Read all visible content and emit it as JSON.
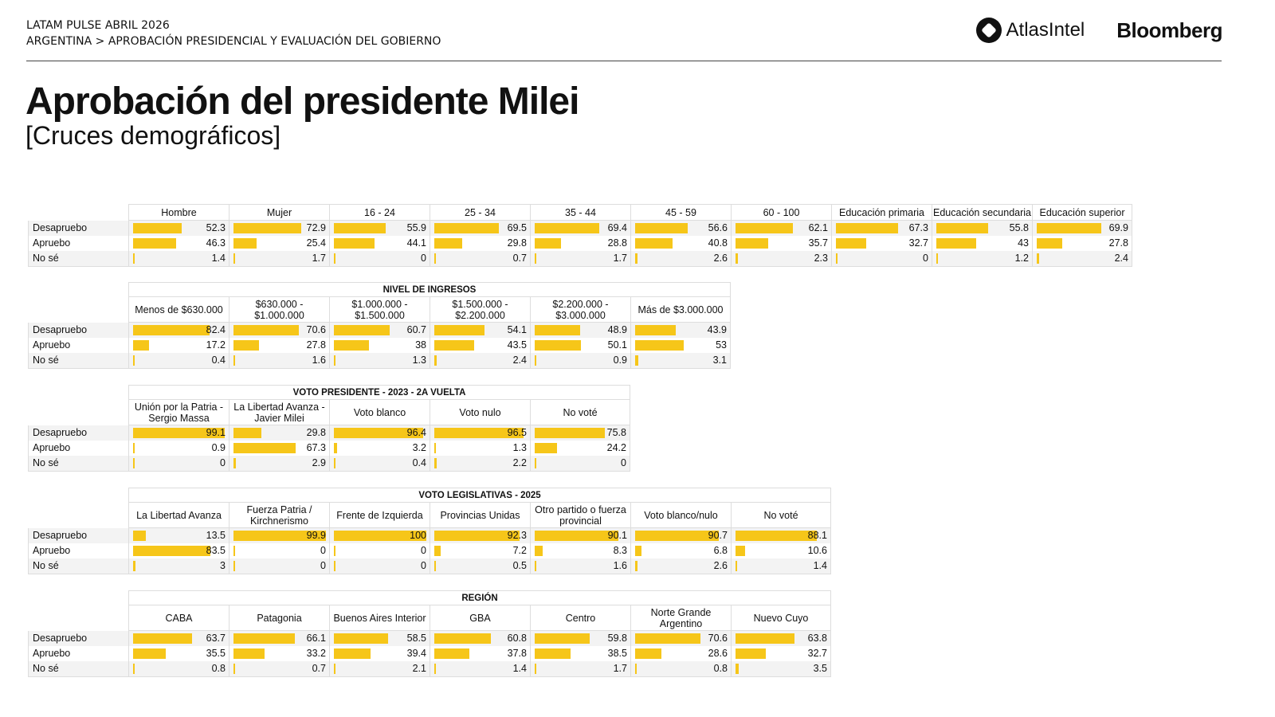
{
  "header": {
    "line1": "LATAM PULSE ABRIL 2026",
    "line2": "ARGENTINA > APROBACIÓN PRESIDENCIAL Y EVALUACIÓN DEL GOBIERNO"
  },
  "logos": {
    "atlas": "AtlasIntel",
    "bloomberg": "Bloomberg"
  },
  "title": "Aprobación del presidente Milei",
  "subtitle": "[Cruces demográficos]",
  "bar_color": "#f6c619",
  "row_labels": [
    "Desapruebo",
    "Apruebo",
    "No sé"
  ],
  "tables": [
    {
      "title": "",
      "columns": [
        "Hombre",
        "Mujer",
        "16 - 24",
        "25 - 34",
        "35 - 44",
        "45 - 59",
        "60 - 100",
        "Educación primaria",
        "Educación secundaria",
        "Educación superior"
      ],
      "values": [
        [
          52.3,
          72.9,
          55.9,
          69.5,
          69.4,
          56.6,
          62.1,
          67.3,
          55.8,
          69.9
        ],
        [
          46.3,
          25.4,
          44.1,
          29.8,
          28.8,
          40.8,
          35.7,
          32.7,
          43,
          27.8
        ],
        [
          1.4,
          1.7,
          0,
          0.7,
          1.7,
          2.6,
          2.3,
          0,
          1.2,
          2.4
        ]
      ]
    },
    {
      "title": "NIVEL DE INGRESOS",
      "columns": [
        "Menos de $630.000",
        "$630.000 - $1.000.000",
        "$1.000.000 - $1.500.000",
        "$1.500.000 - $2.200.000",
        "$2.200.000 - $3.000.000",
        "Más de $3.000.000"
      ],
      "values": [
        [
          82.4,
          70.6,
          60.7,
          54.1,
          48.9,
          43.9
        ],
        [
          17.2,
          27.8,
          38,
          43.5,
          50.1,
          53
        ],
        [
          0.4,
          1.6,
          1.3,
          2.4,
          0.9,
          3.1
        ]
      ]
    },
    {
      "title": "VOTO PRESIDENTE - 2023 - 2A VUELTA",
      "columns": [
        "Unión por la Patria - Sergio Massa",
        "La Libertad Avanza - Javier Milei",
        "Voto blanco",
        "Voto nulo",
        "No voté"
      ],
      "values": [
        [
          99.1,
          29.8,
          96.4,
          96.5,
          75.8
        ],
        [
          0.9,
          67.3,
          3.2,
          1.3,
          24.2
        ],
        [
          0,
          2.9,
          0.4,
          2.2,
          0
        ]
      ]
    },
    {
      "title": "VOTO LEGISLATIVAS - 2025",
      "columns": [
        "La Libertad Avanza",
        "Fuerza Patria / Kirchnerismo",
        "Frente de Izquierda",
        "Provincias Unidas",
        "Otro partido o fuerza provincial",
        "Voto blanco/nulo",
        "No voté"
      ],
      "values": [
        [
          13.5,
          99.9,
          100,
          92.3,
          90.1,
          90.7,
          88.1
        ],
        [
          83.5,
          0,
          0,
          7.2,
          8.3,
          6.8,
          10.6
        ],
        [
          3,
          0,
          0,
          0.5,
          1.6,
          2.6,
          1.4
        ]
      ]
    },
    {
      "title": "REGIÓN",
      "columns": [
        "CABA",
        "Patagonia",
        "Buenos Aires Interior",
        "GBA",
        "Centro",
        "Norte Grande Argentino",
        "Nuevo Cuyo"
      ],
      "values": [
        [
          63.7,
          66.1,
          58.5,
          60.8,
          59.8,
          70.6,
          63.8
        ],
        [
          35.5,
          33.2,
          39.4,
          37.8,
          38.5,
          28.6,
          32.7
        ],
        [
          0.8,
          0.7,
          2.1,
          1.4,
          1.7,
          0.8,
          3.5
        ]
      ]
    }
  ]
}
